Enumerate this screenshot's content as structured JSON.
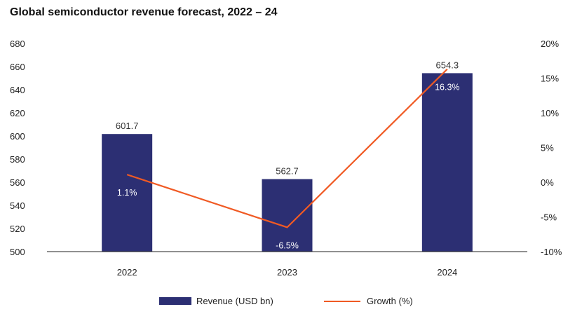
{
  "title": "Global semiconductor revenue forecast, 2022 – 24",
  "colors": {
    "bar": "#2c2f73",
    "line": "#f05a24",
    "axis": "#222222"
  },
  "legend": {
    "bar_label": "Revenue (USD bn)",
    "line_label": "Growth (%)"
  },
  "chart_data": {
    "type": "bar",
    "title": "Global semiconductor revenue forecast, 2022 – 24",
    "categories": [
      "2022",
      "2023",
      "2024"
    ],
    "series": [
      {
        "name": "Revenue (USD bn)",
        "type": "bar",
        "axis": "left",
        "values": [
          601.7,
          562.7,
          654.3
        ],
        "labels": [
          "601.7",
          "562.7",
          "654.3"
        ]
      },
      {
        "name": "Growth (%)",
        "type": "line",
        "axis": "right",
        "values": [
          1.1,
          -6.5,
          16.3
        ],
        "labels": [
          "1.1%",
          "-6.5%",
          "16.3%"
        ]
      }
    ],
    "y_left": {
      "ylim": [
        500,
        680
      ],
      "ticks": [
        "500",
        "520",
        "540",
        "560",
        "580",
        "600",
        "620",
        "640",
        "660",
        "680"
      ]
    },
    "y_right": {
      "ylim": [
        -10,
        20
      ],
      "ticks": [
        "-10%",
        "-5%",
        "0%",
        "5%",
        "10%",
        "15%",
        "20%"
      ]
    },
    "grid": false,
    "legend_position": "bottom"
  }
}
